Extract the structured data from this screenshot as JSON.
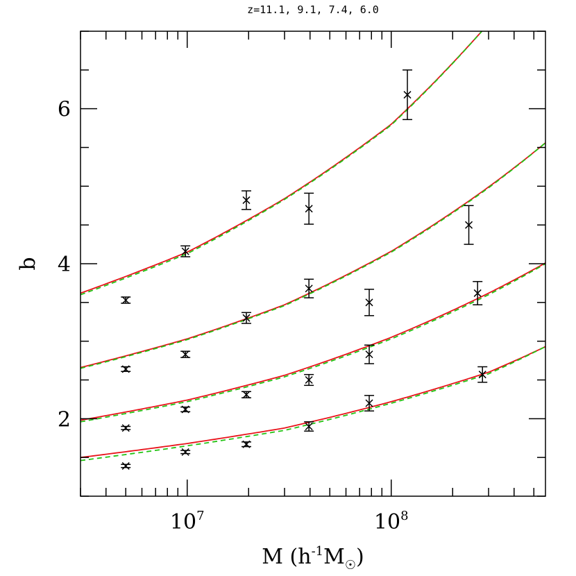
{
  "chart_data": {
    "type": "scatter",
    "title": "z=11.1, 9.1, 7.4, 6.0",
    "xlabel": "M (h⁻¹M☉)",
    "ylabel": "b",
    "x_scale": "log",
    "xlim": [
      3000000,
      570000000
    ],
    "ylim": [
      1.0,
      7.0
    ],
    "grid": false,
    "x_ticks": [
      {
        "value": 10000000,
        "base": "10",
        "exp": "7"
      },
      {
        "value": 100000000,
        "base": "10",
        "exp": "8"
      }
    ],
    "y_ticks": [
      {
        "value": 2,
        "label": "2"
      },
      {
        "value": 4,
        "label": "4"
      },
      {
        "value": 6,
        "label": "6"
      }
    ],
    "series": [
      {
        "points": [
          {
            "x": 5000000,
            "y": 3.53,
            "err": 0.04
          },
          {
            "x": 9800000,
            "y": 4.16,
            "err": 0.07
          },
          {
            "x": 19500000,
            "y": 4.82,
            "err": 0.12
          },
          {
            "x": 39500000,
            "y": 4.71,
            "err": 0.2
          },
          {
            "x": 120000000,
            "y": 6.18,
            "err": 0.32
          }
        ],
        "model_solid": [
          [
            3000000,
            3.62
          ],
          [
            10000000,
            4.15
          ],
          [
            30000000,
            4.84
          ],
          [
            100000000,
            5.8
          ],
          [
            300000000,
            7.1
          ]
        ],
        "model_dashed": [
          [
            3000000,
            3.6
          ],
          [
            10000000,
            4.13
          ],
          [
            30000000,
            4.83
          ],
          [
            100000000,
            5.79
          ],
          [
            300000000,
            7.1
          ]
        ]
      },
      {
        "points": [
          {
            "x": 5000000,
            "y": 2.64,
            "err": 0.03
          },
          {
            "x": 9800000,
            "y": 2.83,
            "err": 0.04
          },
          {
            "x": 19500000,
            "y": 3.3,
            "err": 0.07
          },
          {
            "x": 39500000,
            "y": 3.68,
            "err": 0.12
          },
          {
            "x": 78000000,
            "y": 3.5,
            "err": 0.17
          },
          {
            "x": 240000000,
            "y": 4.5,
            "err": 0.25
          },
          {
            "x": 265000000,
            "y": 3.62,
            "err": 0.15
          }
        ],
        "model_solid": [
          [
            3000000,
            2.66
          ],
          [
            10000000,
            3.03
          ],
          [
            30000000,
            3.47
          ],
          [
            100000000,
            4.16
          ],
          [
            300000000,
            4.99
          ],
          [
            570000000,
            5.56
          ]
        ],
        "model_dashed": [
          [
            3000000,
            2.65
          ],
          [
            10000000,
            3.02
          ],
          [
            30000000,
            3.46
          ],
          [
            100000000,
            4.15
          ],
          [
            300000000,
            4.98
          ],
          [
            570000000,
            5.56
          ]
        ]
      },
      {
        "points": [
          {
            "x": 5000000,
            "y": 1.88,
            "err": 0.02
          },
          {
            "x": 9800000,
            "y": 2.12,
            "err": 0.03
          },
          {
            "x": 19500000,
            "y": 2.31,
            "err": 0.04
          },
          {
            "x": 39500000,
            "y": 2.5,
            "err": 0.07
          },
          {
            "x": 78000000,
            "y": 2.83,
            "err": 0.12
          }
        ],
        "model_solid": [
          [
            3000000,
            1.98
          ],
          [
            10000000,
            2.24
          ],
          [
            30000000,
            2.56
          ],
          [
            100000000,
            3.05
          ],
          [
            300000000,
            3.62
          ],
          [
            570000000,
            4.01
          ]
        ],
        "model_dashed": [
          [
            3000000,
            1.96
          ],
          [
            10000000,
            2.22
          ],
          [
            30000000,
            2.54
          ],
          [
            100000000,
            3.03
          ],
          [
            300000000,
            3.6
          ],
          [
            570000000,
            4.0
          ]
        ]
      },
      {
        "points": [
          {
            "x": 5000000,
            "y": 1.39,
            "err": 0.02
          },
          {
            "x": 9800000,
            "y": 1.57,
            "err": 0.02
          },
          {
            "x": 19500000,
            "y": 1.67,
            "err": 0.03
          },
          {
            "x": 39500000,
            "y": 1.9,
            "err": 0.06
          },
          {
            "x": 78000000,
            "y": 2.2,
            "err": 0.1
          },
          {
            "x": 280000000,
            "y": 2.57,
            "err": 0.1
          }
        ],
        "model_solid": [
          [
            3000000,
            1.5
          ],
          [
            10000000,
            1.68
          ],
          [
            30000000,
            1.88
          ],
          [
            100000000,
            2.22
          ],
          [
            300000000,
            2.6
          ],
          [
            570000000,
            2.93
          ]
        ],
        "model_dashed": [
          [
            3000000,
            1.46
          ],
          [
            10000000,
            1.65
          ],
          [
            30000000,
            1.85
          ],
          [
            100000000,
            2.2
          ],
          [
            300000000,
            2.58
          ],
          [
            570000000,
            2.93
          ]
        ]
      }
    ],
    "colors": {
      "solid": "#e8131a",
      "dashed": "#22c313",
      "points": "#000000",
      "axes": "#000000"
    }
  }
}
